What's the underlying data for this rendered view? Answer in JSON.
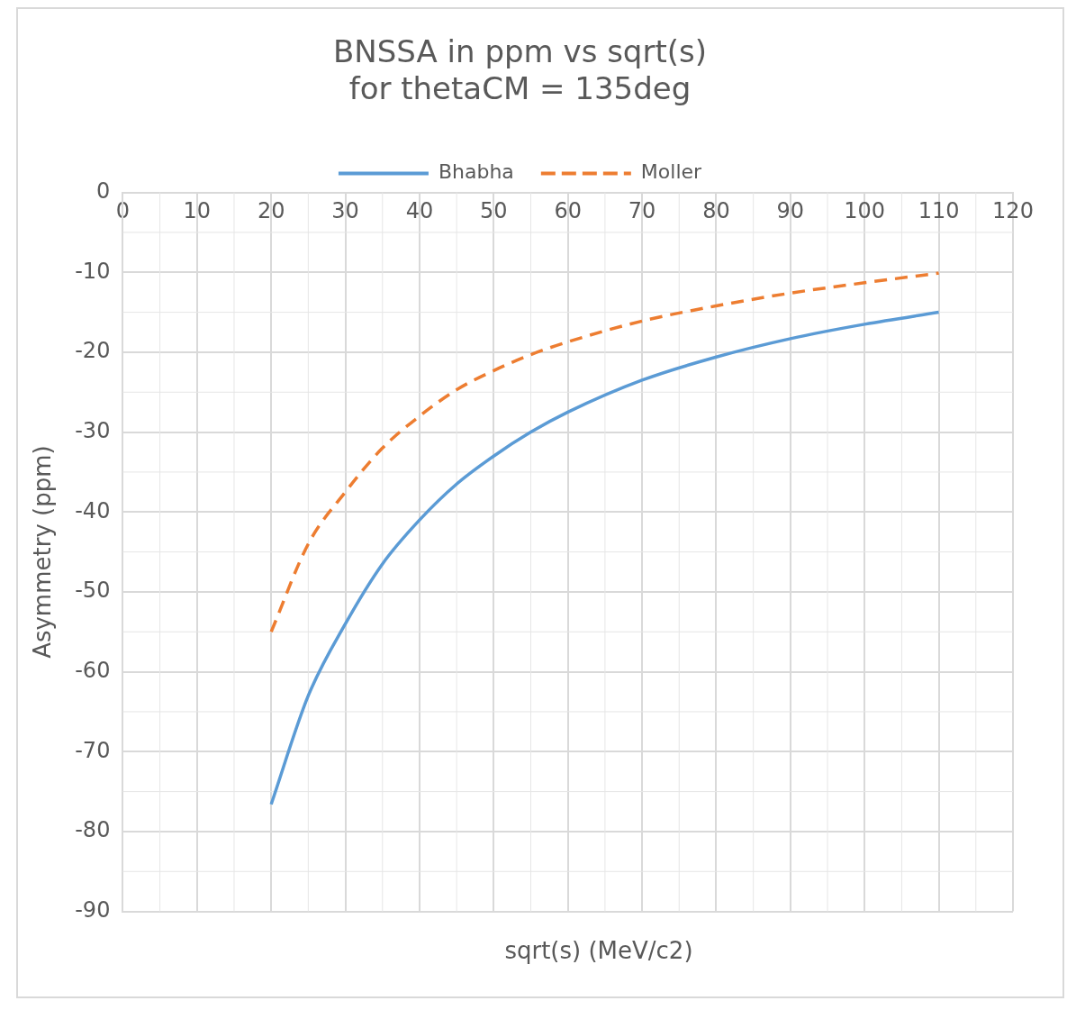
{
  "chart_data": {
    "type": "line",
    "title": "BNSSA in ppm vs sqrt(s)\nfor thetaCM = 135deg",
    "xlabel": "sqrt(s) (MeV/c2)",
    "ylabel": "Asymmetry (ppm)",
    "x": [
      20,
      25,
      30,
      35,
      40,
      45,
      50,
      55,
      60,
      70,
      80,
      90,
      100,
      110
    ],
    "series": [
      {
        "name": "Bhabha",
        "color": "#5b9bd5",
        "line_style": "solid",
        "values": [
          -76.6,
          -63,
          -54,
          -46.5,
          -41,
          -36.5,
          -33,
          -30,
          -27.5,
          -23.5,
          -20.6,
          -18.3,
          -16.5,
          -15
        ]
      },
      {
        "name": "Moller",
        "color": "#ed7d31",
        "line_style": "dashed",
        "values": [
          -55,
          -44,
          -37.5,
          -32,
          -28,
          -24.7,
          -22.3,
          -20.3,
          -18.7,
          -16.1,
          -14.2,
          -12.6,
          -11.3,
          -10.1
        ]
      }
    ],
    "xlim": [
      0,
      120
    ],
    "xticks": [
      0,
      10,
      20,
      30,
      40,
      50,
      60,
      70,
      80,
      90,
      100,
      110,
      120
    ],
    "ylim": [
      -90,
      0
    ],
    "yticks": [
      0,
      -10,
      -20,
      -30,
      -40,
      -50,
      -60,
      -70,
      -80,
      -90
    ],
    "grid": true,
    "legend": "top",
    "marker": "none"
  }
}
